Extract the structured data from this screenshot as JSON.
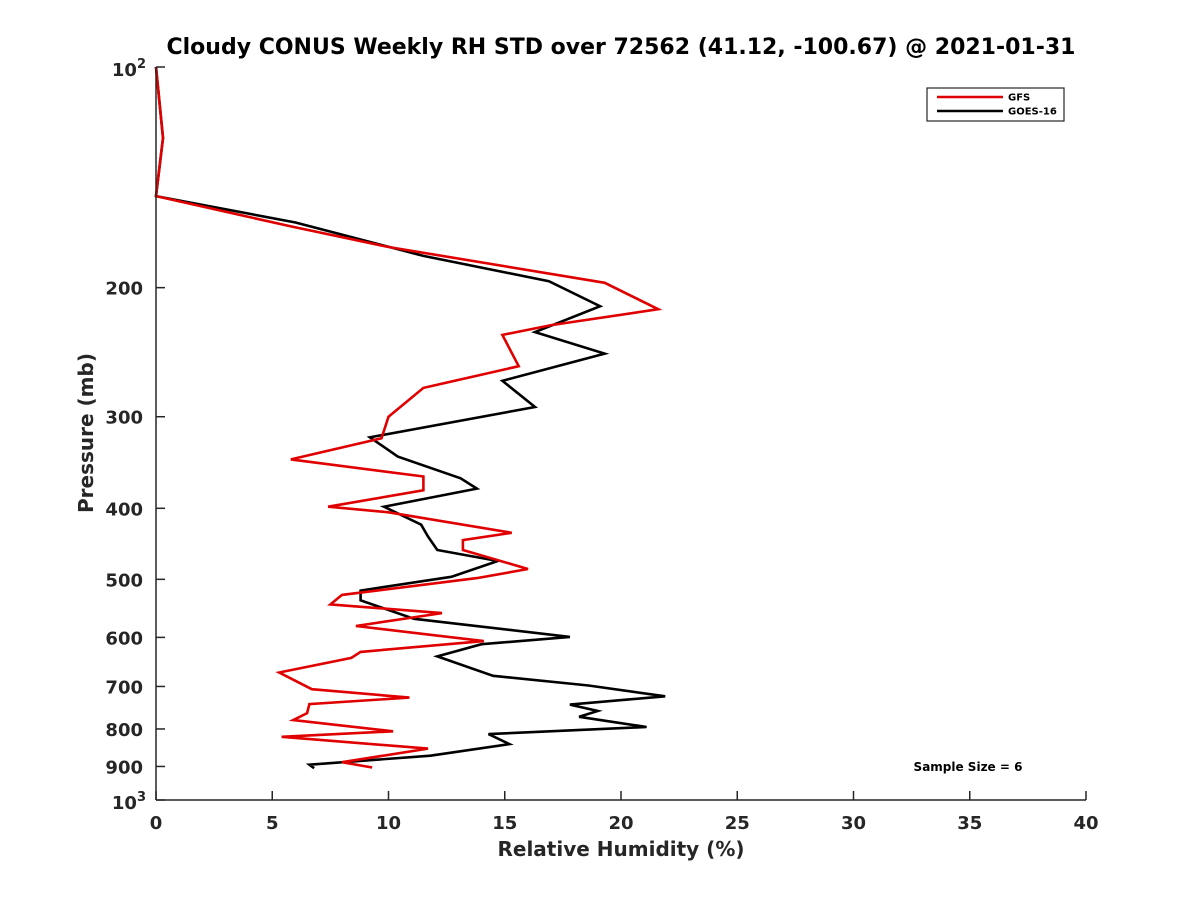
{
  "chart_data": {
    "type": "line",
    "title": "Cloudy CONUS Weekly RH STD over 72562 (41.12, -100.67) @ 2021-01-31",
    "xlabel": "Relative Humidity (%)",
    "ylabel": "Pressure (mb)",
    "xlim": [
      0,
      40
    ],
    "ylim": [
      100,
      1000
    ],
    "y_scale": "log",
    "y_reversed": true,
    "x_ticks": [
      0,
      5,
      10,
      15,
      20,
      25,
      30,
      35,
      40
    ],
    "y_ticks": [
      {
        "value": 100,
        "base": "10",
        "exp": "2"
      },
      {
        "value": 200,
        "label": "200"
      },
      {
        "value": 300,
        "label": "300"
      },
      {
        "value": 400,
        "label": "400"
      },
      {
        "value": 500,
        "label": "500"
      },
      {
        "value": 600,
        "label": "600"
      },
      {
        "value": 700,
        "label": "700"
      },
      {
        "value": 800,
        "label": "800"
      },
      {
        "value": 900,
        "label": "900"
      },
      {
        "value": 1000,
        "base": "10",
        "exp": "3"
      }
    ],
    "grid": false,
    "legend_position": "top-right",
    "annotation": "Sample Size = 6",
    "series": [
      {
        "name": "GFS",
        "color": "#e00000",
        "points": [
          [
            0.0,
            100
          ],
          [
            0.3,
            125
          ],
          [
            0.0,
            150
          ],
          [
            5.8,
            165
          ],
          [
            10.0,
            176
          ],
          [
            19.3,
            197
          ],
          [
            21.6,
            214
          ],
          [
            17.0,
            225
          ],
          [
            14.9,
            232
          ],
          [
            15.6,
            256
          ],
          [
            11.5,
            274
          ],
          [
            10.0,
            300
          ],
          [
            9.7,
            321
          ],
          [
            5.8,
            343
          ],
          [
            11.5,
            362
          ],
          [
            11.5,
            378
          ],
          [
            7.4,
            398
          ],
          [
            10.0,
            405
          ],
          [
            15.3,
            432
          ],
          [
            13.2,
            442
          ],
          [
            13.2,
            456
          ],
          [
            16.0,
            484
          ],
          [
            13.8,
            498
          ],
          [
            8.0,
            525
          ],
          [
            7.5,
            541
          ],
          [
            12.3,
            556
          ],
          [
            8.6,
            579
          ],
          [
            14.1,
            607
          ],
          [
            8.8,
            628
          ],
          [
            8.4,
            640
          ],
          [
            5.3,
            670
          ],
          [
            6.7,
            706
          ],
          [
            10.9,
            725
          ],
          [
            6.6,
            740
          ],
          [
            6.5,
            761
          ],
          [
            5.9,
            778
          ],
          [
            10.2,
            806
          ],
          [
            5.4,
            820
          ],
          [
            11.7,
            851
          ],
          [
            8.0,
            888
          ],
          [
            9.3,
            903
          ]
        ]
      },
      {
        "name": "GOES-16",
        "color": "#000000",
        "points": [
          [
            0.0,
            100
          ],
          [
            0.3,
            125
          ],
          [
            0.0,
            150
          ],
          [
            6.0,
            163
          ],
          [
            11.5,
            181
          ],
          [
            16.9,
            196
          ],
          [
            19.1,
            212
          ],
          [
            16.3,
            230
          ],
          [
            19.3,
            246
          ],
          [
            14.9,
            268
          ],
          [
            16.3,
            291
          ],
          [
            9.2,
            320
          ],
          [
            10.4,
            340
          ],
          [
            13.1,
            364
          ],
          [
            13.8,
            376
          ],
          [
            9.8,
            398
          ],
          [
            11.4,
            421
          ],
          [
            11.7,
            437
          ],
          [
            12.1,
            456
          ],
          [
            14.7,
            472
          ],
          [
            12.7,
            496
          ],
          [
            8.8,
            518
          ],
          [
            8.8,
            534
          ],
          [
            11.1,
            566
          ],
          [
            17.8,
            599
          ],
          [
            14.0,
            613
          ],
          [
            12.1,
            637
          ],
          [
            14.5,
            677
          ],
          [
            18.6,
            698
          ],
          [
            21.9,
            722
          ],
          [
            17.8,
            741
          ],
          [
            19.0,
            756
          ],
          [
            18.2,
            770
          ],
          [
            21.1,
            795
          ],
          [
            14.3,
            813
          ],
          [
            15.2,
            839
          ],
          [
            11.8,
            870
          ],
          [
            6.6,
            895
          ],
          [
            6.8,
            905
          ]
        ]
      }
    ]
  }
}
